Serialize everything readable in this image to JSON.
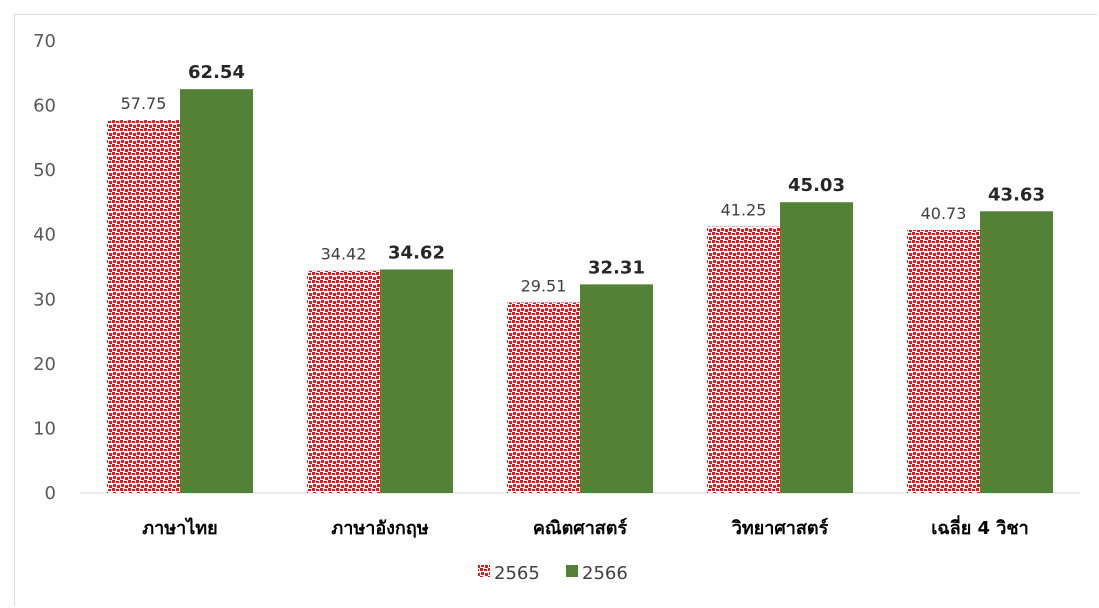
{
  "chart_data": {
    "type": "bar",
    "title": "",
    "xlabel": "",
    "ylabel": "",
    "ylim": [
      0,
      70
    ],
    "yticks": [
      0,
      10,
      20,
      30,
      40,
      50,
      60,
      70
    ],
    "categories": [
      "ภาษาไทย",
      "ภาษาอังกฤษ",
      "คณิตศาสตร์",
      "วิทยาศาสตร์",
      "เฉลี่ย 4 วิชา"
    ],
    "series": [
      {
        "name": "2565",
        "values": [
          57.75,
          34.42,
          29.51,
          41.25,
          40.73
        ],
        "color": "#e31a1c",
        "pattern": "dotted-red"
      },
      {
        "name": "2566",
        "values": [
          62.54,
          34.62,
          32.31,
          45.03,
          43.63
        ],
        "color": "#538135"
      }
    ],
    "data_labels": {
      "2565": [
        "57.75",
        "34.42",
        "29.51",
        "41.25",
        "40.73"
      ],
      "2566": [
        "62.54",
        "34.62",
        "32.31",
        "45.03",
        "43.63"
      ]
    },
    "legend_position": "bottom",
    "grid": false
  }
}
